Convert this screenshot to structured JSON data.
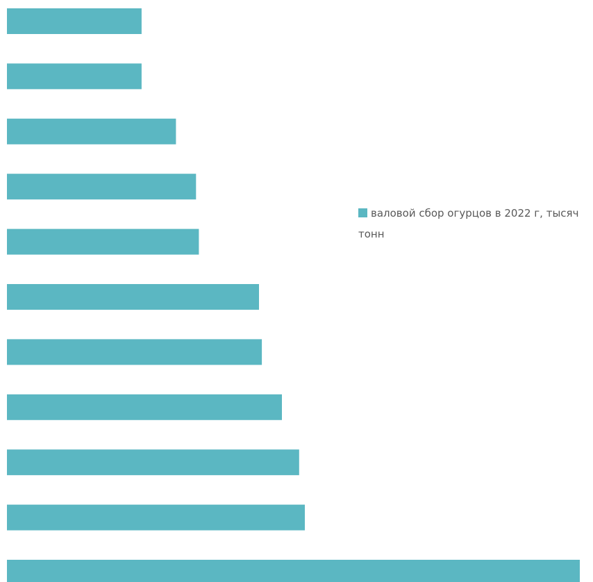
{
  "chart_data": {
    "type": "bar",
    "orientation": "horizontal",
    "categories": [
      "",
      "",
      "",
      "",
      "",
      "",
      "",
      "",
      "",
      "",
      ""
    ],
    "series": [
      {
        "name": "валовой сбор огурцов в 2022 г, тысяч тонн",
        "color": "#5bb7c2",
        "values": [
          23.5,
          23.5,
          29.5,
          33,
          33.5,
          44,
          44.5,
          48,
          51,
          52,
          100
        ]
      }
    ],
    "xlim": [
      0,
      100
    ],
    "grid": false,
    "legend": "right"
  }
}
